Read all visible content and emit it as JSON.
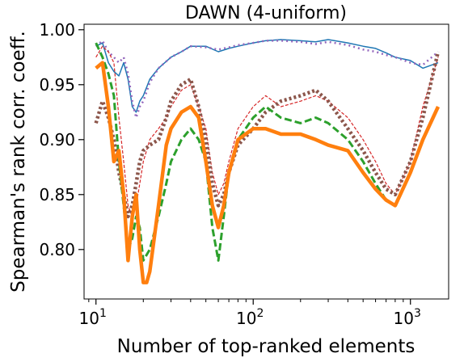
{
  "chart_data": {
    "type": "line",
    "title": "DAWN (4-uniform)",
    "xlabel": "Number of top-ranked elements",
    "ylabel": "Spearman's rank corr. coeff.",
    "xscale": "log",
    "xlim": [
      8.4,
      1750
    ],
    "ylim": [
      0.755,
      1.005
    ],
    "yticks": [
      0.8,
      0.85,
      0.9,
      0.95,
      1.0
    ],
    "ytick_labels": [
      "0.80",
      "0.85",
      "0.90",
      "0.95",
      "1.00"
    ],
    "xticks": [
      {
        "value": 10,
        "base": "10",
        "exp": "1"
      },
      {
        "value": 100,
        "base": "10",
        "exp": "2"
      },
      {
        "value": 1000,
        "base": "10",
        "exp": "3"
      }
    ],
    "grid": false,
    "legend": "none",
    "series": [
      {
        "color": "#1f77b4",
        "width": 1.5,
        "dash": "",
        "x": [
          10,
          11,
          12,
          13,
          14,
          15,
          16,
          17,
          18,
          19,
          20,
          22,
          25,
          30,
          35,
          40,
          50,
          60,
          70,
          80,
          100,
          120,
          150,
          200,
          250,
          300,
          400,
          500,
          600,
          700,
          800,
          1000,
          1200,
          1500
        ],
        "y": [
          0.985,
          0.988,
          0.97,
          0.962,
          0.958,
          0.97,
          0.955,
          0.93,
          0.925,
          0.935,
          0.94,
          0.955,
          0.965,
          0.975,
          0.98,
          0.985,
          0.985,
          0.98,
          0.983,
          0.985,
          0.988,
          0.99,
          0.991,
          0.99,
          0.989,
          0.991,
          0.988,
          0.985,
          0.983,
          0.979,
          0.975,
          0.972,
          0.965,
          0.97
        ]
      },
      {
        "color": "#9467bd",
        "width": 2.5,
        "dash": "2 4",
        "x": [
          10,
          11,
          12,
          13,
          14,
          15,
          16,
          17,
          18,
          19,
          20,
          22,
          25,
          30,
          35,
          40,
          50,
          60,
          70,
          80,
          100,
          120,
          150,
          200,
          250,
          300,
          400,
          500,
          600,
          700,
          800,
          1000,
          1200,
          1500
        ],
        "y": [
          0.985,
          0.99,
          0.98,
          0.975,
          0.97,
          0.975,
          0.96,
          0.935,
          0.92,
          0.93,
          0.935,
          0.952,
          0.965,
          0.975,
          0.98,
          0.985,
          0.984,
          0.982,
          0.984,
          0.986,
          0.988,
          0.99,
          0.99,
          0.989,
          0.987,
          0.989,
          0.986,
          0.982,
          0.98,
          0.977,
          0.975,
          0.97,
          0.968,
          0.98
        ]
      },
      {
        "color": "#d62728",
        "width": 1.2,
        "dash": "4 2",
        "x": [
          10,
          11,
          12,
          13,
          14,
          15,
          16,
          17,
          18,
          19,
          20,
          22,
          25,
          28,
          30,
          35,
          40,
          45,
          50,
          55,
          60,
          65,
          70,
          80,
          100,
          120,
          150,
          200,
          250,
          300,
          400,
          500,
          600,
          700,
          800,
          1000,
          1200,
          1500
        ],
        "y": [
          0.975,
          0.985,
          0.98,
          0.97,
          0.92,
          0.88,
          0.84,
          0.83,
          0.84,
          0.86,
          0.88,
          0.9,
          0.91,
          0.92,
          0.93,
          0.945,
          0.95,
          0.93,
          0.91,
          0.87,
          0.85,
          0.86,
          0.88,
          0.91,
          0.93,
          0.94,
          0.93,
          0.935,
          0.94,
          0.935,
          0.92,
          0.9,
          0.88,
          0.86,
          0.85,
          0.88,
          0.93,
          0.975
        ]
      },
      {
        "color": "#8c564b",
        "width": 4.5,
        "dash": "3 3",
        "x": [
          10,
          11,
          12,
          13,
          14,
          15,
          16,
          17,
          18,
          19,
          20,
          22,
          25,
          28,
          30,
          35,
          40,
          45,
          50,
          55,
          60,
          65,
          70,
          80,
          100,
          120,
          150,
          200,
          250,
          300,
          400,
          500,
          600,
          700,
          800,
          1000,
          1200,
          1500
        ],
        "y": [
          0.915,
          0.935,
          0.92,
          0.9,
          0.87,
          0.85,
          0.83,
          0.84,
          0.86,
          0.88,
          0.89,
          0.895,
          0.9,
          0.92,
          0.935,
          0.95,
          0.955,
          0.93,
          0.9,
          0.86,
          0.84,
          0.85,
          0.87,
          0.895,
          0.91,
          0.925,
          0.935,
          0.94,
          0.945,
          0.935,
          0.91,
          0.89,
          0.87,
          0.855,
          0.85,
          0.88,
          0.92,
          0.98
        ]
      },
      {
        "color": "#2ca02c",
        "width": 3,
        "dash": "9 4",
        "x": [
          10,
          11,
          12,
          13,
          14,
          15,
          16,
          17,
          18,
          19,
          20,
          22,
          25,
          28,
          30,
          35,
          40,
          45,
          50,
          55,
          60,
          65,
          70,
          80,
          100,
          120,
          150,
          200,
          250,
          300,
          400,
          500,
          600,
          700,
          800,
          1000,
          1200,
          1500
        ],
        "y": [
          0.988,
          0.975,
          0.96,
          0.94,
          0.88,
          0.84,
          0.8,
          0.81,
          0.83,
          0.82,
          0.79,
          0.8,
          0.83,
          0.86,
          0.88,
          0.9,
          0.91,
          0.9,
          0.88,
          0.82,
          0.79,
          0.83,
          0.87,
          0.9,
          0.92,
          0.93,
          0.92,
          0.915,
          0.92,
          0.915,
          0.9,
          0.88,
          0.86,
          0.845,
          0.84,
          0.87,
          0.9,
          0.93
        ]
      },
      {
        "color": "#ff7f0e",
        "width": 4.5,
        "dash": "",
        "x": [
          10,
          11,
          12,
          13,
          14,
          15,
          16,
          17,
          18,
          19,
          20,
          21,
          22,
          25,
          28,
          30,
          35,
          40,
          45,
          50,
          55,
          60,
          65,
          70,
          80,
          100,
          120,
          150,
          200,
          250,
          300,
          400,
          500,
          600,
          700,
          800,
          1000,
          1200,
          1500
        ],
        "y": [
          0.965,
          0.97,
          0.93,
          0.88,
          0.89,
          0.85,
          0.79,
          0.83,
          0.85,
          0.8,
          0.77,
          0.77,
          0.78,
          0.84,
          0.895,
          0.91,
          0.925,
          0.93,
          0.92,
          0.88,
          0.84,
          0.82,
          0.84,
          0.87,
          0.9,
          0.91,
          0.91,
          0.905,
          0.905,
          0.9,
          0.895,
          0.89,
          0.87,
          0.855,
          0.845,
          0.84,
          0.87,
          0.9,
          0.93
        ]
      }
    ]
  }
}
